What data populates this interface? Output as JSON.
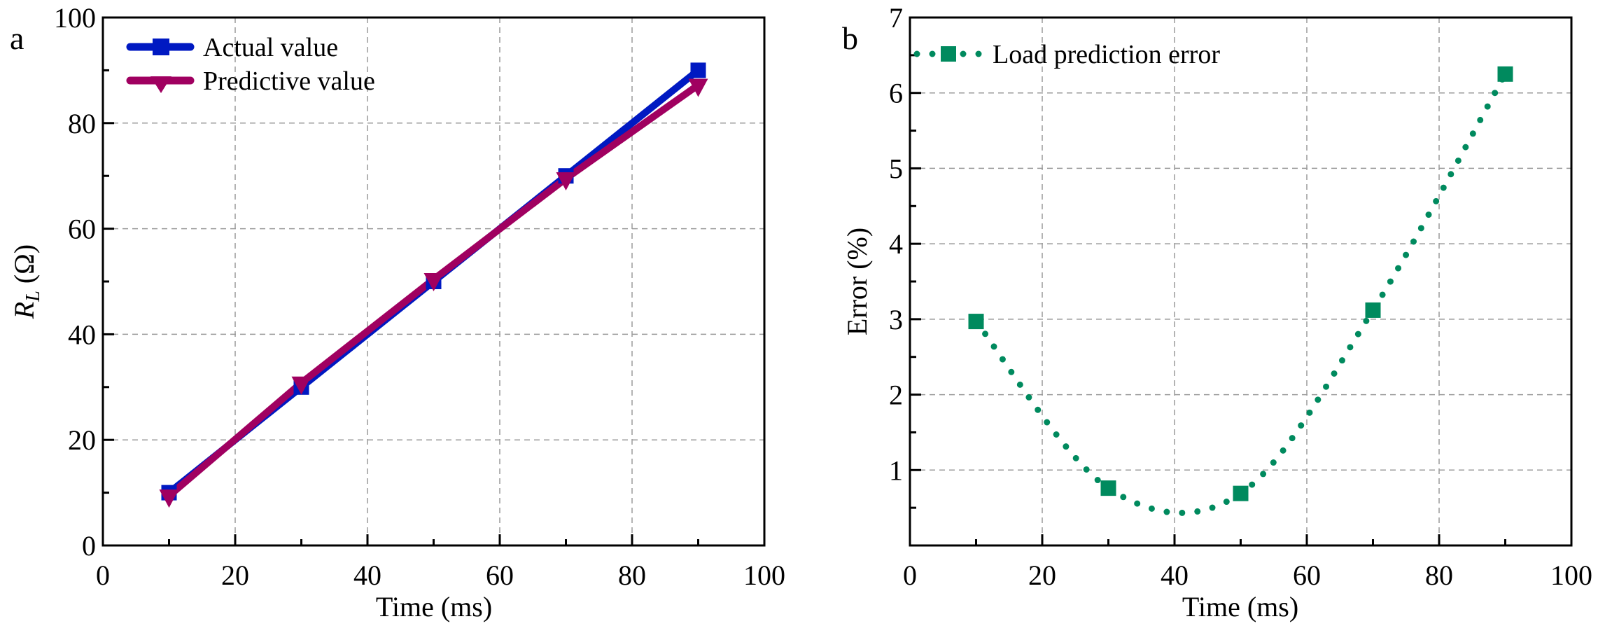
{
  "chart_data": [
    {
      "panel": "a",
      "type": "line",
      "title": "",
      "xlabel": "Time (ms)",
      "ylabel_main": "R",
      "ylabel_sub": "L",
      "ylabel_unit": " (Ω)",
      "xlim": [
        0,
        100
      ],
      "ylim": [
        0,
        100
      ],
      "xticks": [
        0,
        20,
        40,
        60,
        80,
        100
      ],
      "yticks": [
        0,
        20,
        40,
        60,
        80,
        100
      ],
      "xtick_labels": [
        "0",
        "20",
        "40",
        "60",
        "80",
        "100"
      ],
      "ytick_labels": [
        "0",
        "20",
        "40",
        "60",
        "80",
        "100"
      ],
      "grid": true,
      "legend_position": "top-left",
      "x": [
        10,
        30,
        50,
        70,
        90
      ],
      "series": [
        {
          "name": "Actual value",
          "marker": "square",
          "color": "#0019C2",
          "values": [
            10,
            30,
            50,
            70,
            90
          ]
        },
        {
          "name": "Predictive value",
          "marker": "triangle-down",
          "color": "#A00060",
          "values": [
            9.4,
            30.8,
            50.4,
            69.5,
            87.2
          ]
        }
      ]
    },
    {
      "panel": "b",
      "type": "scatter",
      "title": "",
      "xlabel": "Time (ms)",
      "ylabel": "Error (%)",
      "xlim": [
        0,
        100
      ],
      "ylim": [
        0,
        7
      ],
      "xticks": [
        0,
        20,
        40,
        60,
        80,
        100
      ],
      "yticks": [
        1,
        2,
        3,
        4,
        5,
        6,
        7
      ],
      "xtick_labels": [
        "0",
        "20",
        "40",
        "60",
        "80",
        "100"
      ],
      "ytick_labels": [
        "1",
        "2",
        "3",
        "4",
        "5",
        "6",
        "7"
      ],
      "grid": true,
      "legend_position": "top-left",
      "x": [
        10,
        30,
        50,
        70,
        90
      ],
      "series": [
        {
          "name": "Load prediction error",
          "marker": "square",
          "line": "dotted-spline",
          "color": "#008A5E",
          "values": [
            2.97,
            0.76,
            0.69,
            3.12,
            6.25
          ]
        }
      ]
    }
  ]
}
